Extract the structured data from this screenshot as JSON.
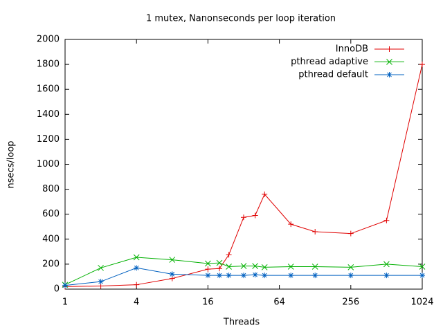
{
  "chart_data": {
    "type": "line",
    "title": "1 mutex, Nanonseconds per loop iteration",
    "xlabel": "Threads",
    "ylabel": "nsecs/loop",
    "x": [
      1,
      2,
      4,
      8,
      16,
      20,
      24,
      32,
      40,
      48,
      80,
      128,
      256,
      512,
      1024
    ],
    "xscale": "log",
    "logbase": 2,
    "xlim": [
      1,
      1024
    ],
    "xticks": [
      1,
      4,
      16,
      64,
      256,
      1024
    ],
    "ylim": [
      0,
      2000
    ],
    "yticks": [
      0,
      200,
      400,
      600,
      800,
      1000,
      1200,
      1400,
      1600,
      1800,
      2000
    ],
    "legend": "top-right",
    "series": [
      {
        "name": "InnoDB",
        "color": "#e00000",
        "marker": "plus",
        "values": [
          20,
          25,
          35,
          85,
          160,
          165,
          275,
          575,
          590,
          760,
          520,
          460,
          445,
          550,
          1800
        ]
      },
      {
        "name": "pthread adaptive",
        "color": "#00b000",
        "marker": "cross",
        "values": [
          35,
          170,
          255,
          235,
          205,
          210,
          180,
          185,
          185,
          175,
          180,
          180,
          175,
          200,
          180
        ]
      },
      {
        "name": "pthread default",
        "color": "#0060c0",
        "marker": "star",
        "values": [
          30,
          60,
          170,
          120,
          110,
          110,
          110,
          110,
          115,
          110,
          110,
          110,
          110,
          110,
          110
        ]
      }
    ]
  }
}
